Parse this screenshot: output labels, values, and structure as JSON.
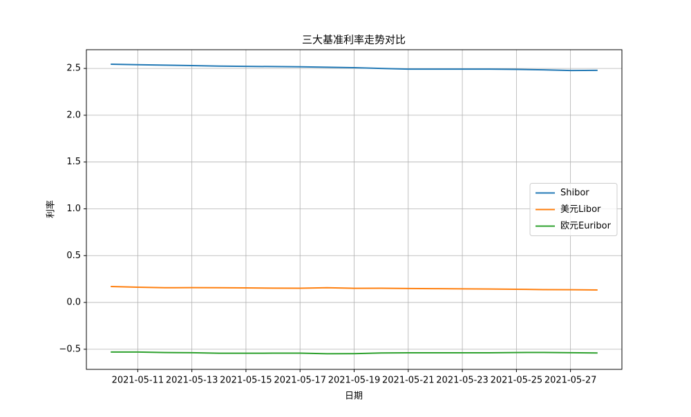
{
  "chart_data": {
    "type": "line",
    "title": "三大基准利率走势对比",
    "xlabel": "日期",
    "ylabel": "利率",
    "x": [
      "2021-05-10",
      "2021-05-11",
      "2021-05-12",
      "2021-05-13",
      "2021-05-14",
      "2021-05-15",
      "2021-05-16",
      "2021-05-17",
      "2021-05-18",
      "2021-05-19",
      "2021-05-20",
      "2021-05-21",
      "2021-05-22",
      "2021-05-23",
      "2021-05-24",
      "2021-05-25",
      "2021-05-26",
      "2021-05-27",
      "2021-05-28"
    ],
    "series": [
      {
        "name": "Shibor",
        "color": "#1f77b4",
        "values": [
          2.545,
          2.54,
          2.535,
          2.53,
          2.525,
          2.522,
          2.52,
          2.517,
          2.513,
          2.508,
          2.5,
          2.493,
          2.493,
          2.493,
          2.493,
          2.49,
          2.485,
          2.478,
          2.48
        ]
      },
      {
        "name": "美元Libor",
        "color": "#ff7f0e",
        "values": [
          0.17,
          0.163,
          0.157,
          0.158,
          0.157,
          0.155,
          0.153,
          0.152,
          0.157,
          0.151,
          0.152,
          0.149,
          0.147,
          0.145,
          0.143,
          0.141,
          0.137,
          0.136,
          0.133
        ]
      },
      {
        "name": "欧元Euribor",
        "color": "#2ca02c",
        "values": [
          -0.53,
          -0.53,
          -0.535,
          -0.537,
          -0.543,
          -0.543,
          -0.542,
          -0.542,
          -0.548,
          -0.547,
          -0.54,
          -0.538,
          -0.538,
          -0.538,
          -0.538,
          -0.535,
          -0.534,
          -0.537,
          -0.54
        ]
      }
    ],
    "xlim": [
      "2021-05-09T02:24",
      "2021-05-28T21:36"
    ],
    "xticks": [
      "2021-05-11",
      "2021-05-13",
      "2021-05-15",
      "2021-05-17",
      "2021-05-19",
      "2021-05-21",
      "2021-05-23",
      "2021-05-25",
      "2021-05-27"
    ],
    "ylim": [
      -0.715,
      2.7
    ],
    "yticks": [
      {
        "value": -0.5,
        "label": "−0.5"
      },
      {
        "value": 0,
        "label": "0.0"
      },
      0.5,
      {
        "value": 1,
        "label": "1.0"
      },
      1.5,
      {
        "value": 2,
        "label": "2.0"
      },
      2.5
    ],
    "grid": true,
    "legend": "center right"
  }
}
